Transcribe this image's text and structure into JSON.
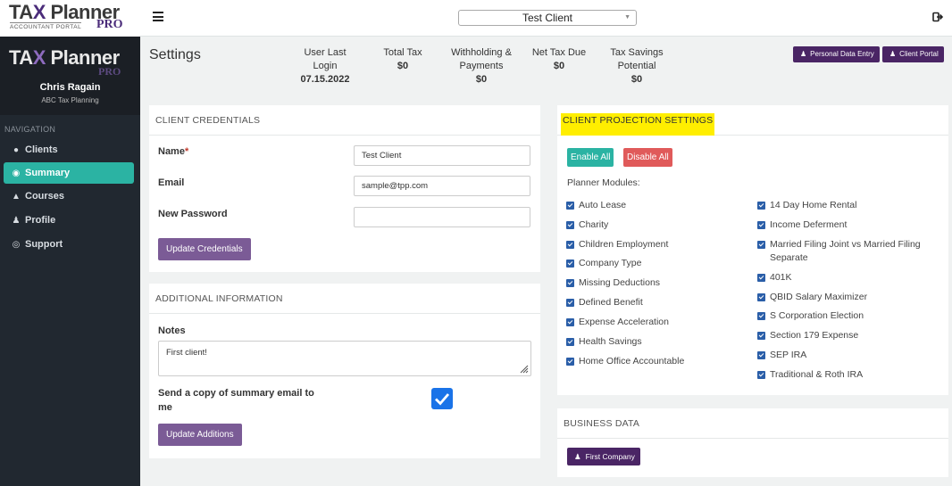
{
  "app": {
    "brand_tax": "TA",
    "brand_x": "X",
    "brand_planner": " Planner",
    "brand_sub": "ACCOUNTANT PORTAL",
    "brand_pro": "PRO"
  },
  "topbar": {
    "client_select_value": "Test Client"
  },
  "sidebar": {
    "user_name": "Chris Ragain",
    "company": "ABC Tax Planning",
    "nav_label": "NAVIGATION",
    "items": [
      {
        "label": "Clients",
        "icon": "users-icon"
      },
      {
        "label": "Summary",
        "icon": "dashboard-icon"
      },
      {
        "label": "Courses",
        "icon": "graduation-cap-icon"
      },
      {
        "label": "Profile",
        "icon": "user-icon"
      },
      {
        "label": "Support",
        "icon": "life-ring-icon"
      }
    ]
  },
  "summary": {
    "title": "Settings",
    "stats": [
      {
        "label_1": "User Last",
        "label_2": "Login",
        "value": "07.15.2022"
      },
      {
        "label_1": "Total Tax",
        "label_2": "",
        "value": "$0"
      },
      {
        "label_1": "Withholding &",
        "label_2": "Payments",
        "value": "$0"
      },
      {
        "label_1": "Net Tax Due",
        "label_2": "",
        "value": "$0"
      },
      {
        "label_1": "Tax Savings",
        "label_2": "Potential",
        "value": "$0"
      }
    ],
    "personal_data_entry": "Personal Data Entry",
    "client_portal": "Client Portal"
  },
  "credentials": {
    "heading": "CLIENT CREDENTIALS",
    "name_label": "Name",
    "name_required": "*",
    "name_value": "Test Client",
    "email_label": "Email",
    "email_value": "sample@tpp.com",
    "password_label": "New Password",
    "password_value": "",
    "update_button": "Update Credentials"
  },
  "additional": {
    "heading": "ADDITIONAL INFORMATION",
    "notes_label": "Notes",
    "notes_value": "First client!",
    "send_copy_label_1": "Send a copy of summary email to",
    "send_copy_label_2": "me",
    "send_copy_checked": true,
    "update_button": "Update Additions"
  },
  "projection": {
    "heading": "CLIENT PROJECTION SETTINGS",
    "enable_all": "Enable All",
    "disable_all": "Disable All",
    "modules_label": "Planner Modules:",
    "left_modules": [
      "Auto Lease",
      "Charity",
      "Children Employment",
      "Company Type",
      "Missing Deductions",
      "Defined Benefit",
      "Expense Acceleration",
      "Health Savings",
      "Home Office Accountable"
    ],
    "right_modules": [
      "14 Day Home Rental",
      "Income Deferment",
      "Married Filing Joint vs Married Filing",
      "401K",
      "QBID Salary Maximizer",
      "S Corporation Election",
      "Section 179 Expense",
      "SEP IRA",
      "Traditional & Roth IRA"
    ],
    "right_module_2_cont": "Separate"
  },
  "business": {
    "heading": "BUSINESS DATA",
    "first_company": "First Company"
  },
  "colors": {
    "accent_teal": "#2bb3a3",
    "brand_purple": "#4a2565",
    "button_purple": "#7b5b96",
    "danger": "#e05a5a",
    "highlight": "#ffee00"
  }
}
